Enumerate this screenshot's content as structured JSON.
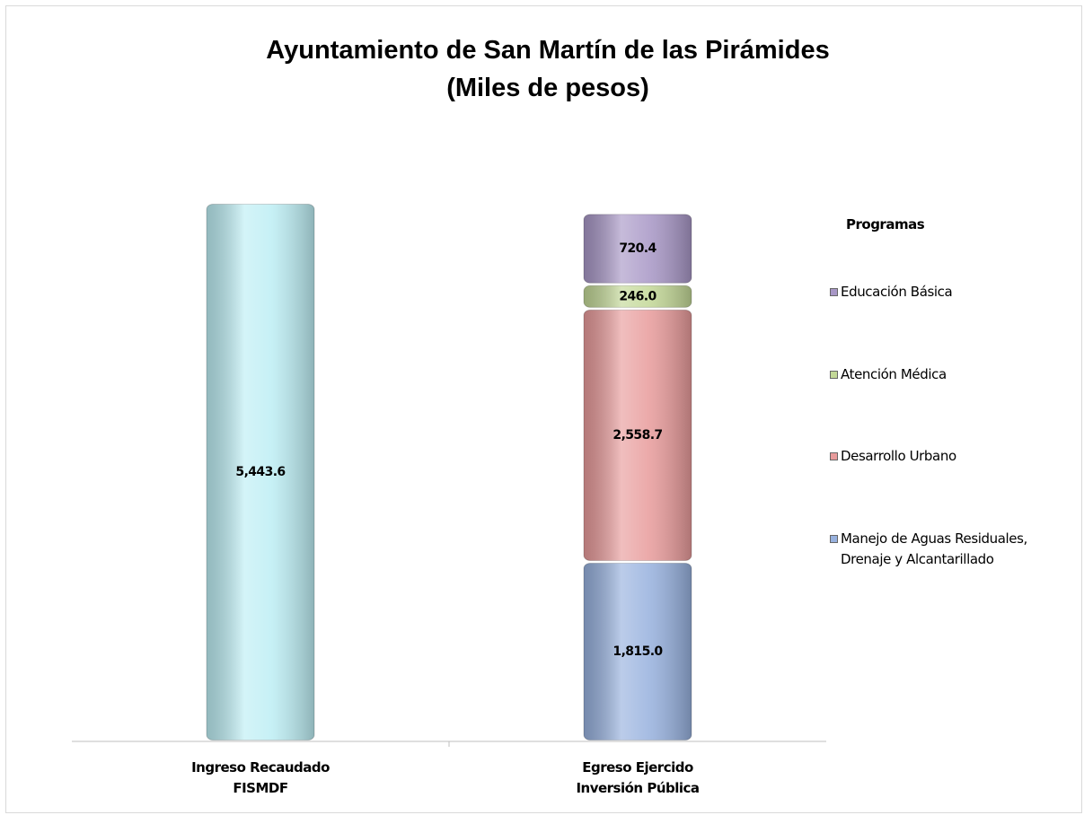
{
  "chart_data": {
    "type": "stacked-bar",
    "title": "Ayuntamiento de San Martín de las Pirámides",
    "subtitle": "(Miles de pesos)",
    "categories": [
      "Ingreso Recaudado\nFISMDF",
      "Egreso Ejercido\nInversión Pública"
    ],
    "legend_title": "Programas",
    "legend_position": "right",
    "series": [
      {
        "color": "#bdeef4",
        "values": [
          5443.6,
          null
        ],
        "value_labels": [
          "5,443.6",
          null
        ]
      },
      {
        "name": "Manejo de Aguas Residuales, Drenaje y Alcantarillado",
        "color": "#97b1de",
        "values": [
          null,
          1815.0
        ],
        "value_labels": [
          null,
          "1,815.0"
        ]
      },
      {
        "name": "Desarrollo Urbano",
        "color": "#e89b9b",
        "values": [
          null,
          2558.7
        ],
        "value_labels": [
          null,
          "2,558.7"
        ]
      },
      {
        "name": "Atención Médica",
        "color": "#c3d897",
        "values": [
          null,
          246.0
        ],
        "value_labels": [
          null,
          "246.0"
        ]
      },
      {
        "name": "Educación Básica",
        "color": "#a897c6",
        "values": [
          null,
          720.4
        ],
        "value_labels": [
          null,
          "720.4"
        ]
      }
    ]
  }
}
